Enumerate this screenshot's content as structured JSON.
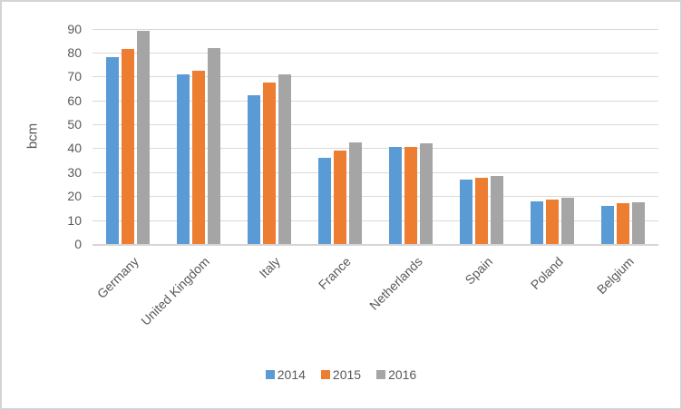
{
  "chart_data": {
    "type": "bar",
    "title": "",
    "xlabel": "",
    "ylabel": "bcm",
    "categories": [
      "Germany",
      "United Kingdom",
      "Italy",
      "France",
      "Netherlands",
      "Spain",
      "Poland",
      "Belgium"
    ],
    "series": [
      {
        "name": "2014",
        "color": "#5B9BD5",
        "values": [
          78,
          71,
          62,
          36,
          40.5,
          27,
          18,
          16
        ]
      },
      {
        "name": "2015",
        "color": "#ED7D31",
        "values": [
          81.5,
          72.5,
          67.5,
          39,
          40.5,
          27.5,
          18.5,
          17
        ]
      },
      {
        "name": "2016",
        "color": "#A5A5A5",
        "values": [
          89,
          82,
          71,
          42.5,
          42,
          28.5,
          19.5,
          17.5
        ]
      }
    ],
    "ylim": [
      0,
      90
    ],
    "yticks": [
      0,
      10,
      20,
      30,
      40,
      50,
      60,
      70,
      80,
      90
    ],
    "grid": "horizontal",
    "legend_position": "bottom"
  },
  "colors": {
    "text": "#595959",
    "gridline": "#D9D9D9",
    "axis_line": "#D5D5D5",
    "background": "#FFFFFF",
    "border": "#D3D3D3"
  }
}
